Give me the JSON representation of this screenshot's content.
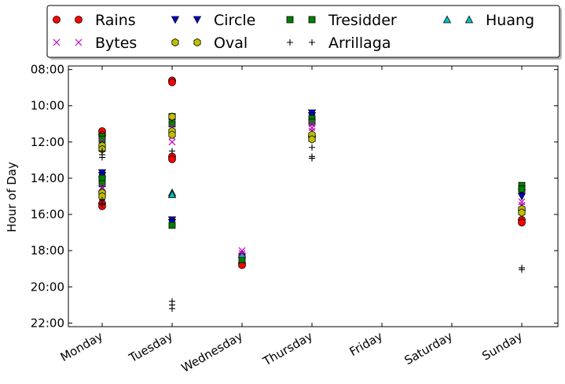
{
  "chart_data": {
    "type": "scatter",
    "title": "",
    "xlabel": "",
    "ylabel": "Hour of Day",
    "categories": [
      "Monday",
      "Tuesday",
      "Wednesday",
      "Thursday",
      "Friday",
      "Saturday",
      "Sunday"
    ],
    "y_ticks": [
      "08:00",
      "10:00",
      "12:00",
      "14:00",
      "16:00",
      "18:00",
      "20:00",
      "22:00"
    ],
    "ylim": [
      22.2,
      7.8
    ],
    "y_inverted": true,
    "grid": false,
    "legend_position": "top, above plot",
    "series": [
      {
        "name": "Rains",
        "marker": "circle",
        "color": "#ff0000",
        "points": [
          [
            0,
            11.4
          ],
          [
            0,
            11.6
          ],
          [
            0,
            15.4
          ],
          [
            0,
            15.55
          ],
          [
            1,
            8.6
          ],
          [
            1,
            8.7
          ],
          [
            1,
            12.8
          ],
          [
            1,
            12.95
          ],
          [
            2,
            18.7
          ],
          [
            2,
            18.8
          ],
          [
            3,
            11.7
          ],
          [
            6,
            16.3
          ],
          [
            6,
            16.45
          ]
        ]
      },
      {
        "name": "Circle",
        "marker": "triangle-down",
        "color": "#0000cc",
        "points": [
          [
            0,
            13.7
          ],
          [
            0,
            13.85
          ],
          [
            0,
            14.1
          ],
          [
            1,
            16.3
          ],
          [
            1,
            16.45
          ],
          [
            3,
            10.4
          ],
          [
            3,
            10.55
          ],
          [
            6,
            14.8
          ],
          [
            6,
            15.0
          ]
        ]
      },
      {
        "name": "Tresidder",
        "marker": "square",
        "color": "#008000",
        "points": [
          [
            0,
            11.7
          ],
          [
            0,
            11.85
          ],
          [
            0,
            14.0
          ],
          [
            0,
            14.3
          ],
          [
            1,
            10.6
          ],
          [
            1,
            11.0
          ],
          [
            1,
            16.6
          ],
          [
            2,
            18.3
          ],
          [
            2,
            18.5
          ],
          [
            3,
            10.7
          ],
          [
            3,
            10.9
          ],
          [
            6,
            14.4
          ],
          [
            6,
            14.6
          ]
        ]
      },
      {
        "name": "Huang",
        "marker": "triangle-up",
        "color": "#00bfbf",
        "points": [
          [
            0,
            14.6
          ],
          [
            1,
            14.8
          ],
          [
            1,
            14.9
          ],
          [
            2,
            18.2
          ],
          [
            3,
            11.5
          ],
          [
            6,
            15.6
          ]
        ]
      },
      {
        "name": "Bytes",
        "marker": "x",
        "color": "#bf00bf",
        "points": [
          [
            0,
            12.0
          ],
          [
            0,
            14.5
          ],
          [
            1,
            11.2
          ],
          [
            1,
            11.7
          ],
          [
            1,
            12.0
          ],
          [
            2,
            18.0
          ],
          [
            2,
            18.15
          ],
          [
            3,
            11.0
          ],
          [
            3,
            11.2
          ],
          [
            3,
            11.4
          ],
          [
            6,
            15.3
          ],
          [
            6,
            15.5
          ]
        ]
      },
      {
        "name": "Oval",
        "marker": "hexagon",
        "color": "#bfbf00",
        "points": [
          [
            0,
            12.2
          ],
          [
            0,
            12.4
          ],
          [
            0,
            14.8
          ],
          [
            0,
            15.0
          ],
          [
            1,
            10.6
          ],
          [
            1,
            11.4
          ],
          [
            1,
            11.6
          ],
          [
            3,
            11.6
          ],
          [
            3,
            11.85
          ],
          [
            6,
            15.7
          ],
          [
            6,
            15.9
          ]
        ]
      },
      {
        "name": "Arrillaga",
        "marker": "plus",
        "color": "#000000",
        "points": [
          [
            0,
            12.5
          ],
          [
            0,
            12.7
          ],
          [
            0,
            12.85
          ],
          [
            0,
            15.2
          ],
          [
            0,
            15.45
          ],
          [
            1,
            20.8
          ],
          [
            1,
            21.0
          ],
          [
            1,
            21.2
          ],
          [
            1,
            12.5
          ],
          [
            3,
            12.3
          ],
          [
            3,
            12.8
          ],
          [
            3,
            12.9
          ],
          [
            6,
            18.95
          ],
          [
            6,
            19.05
          ]
        ]
      }
    ]
  }
}
